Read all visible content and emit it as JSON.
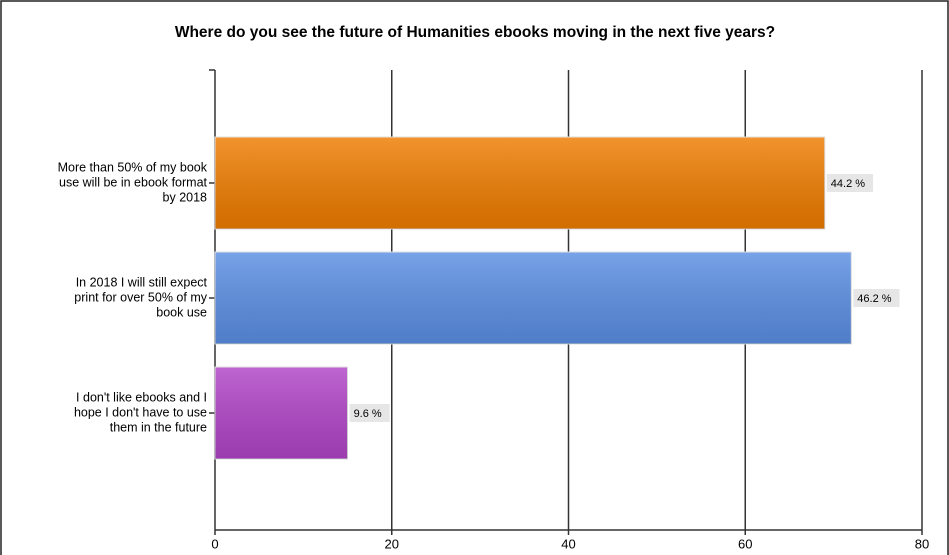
{
  "chart_data": {
    "type": "bar",
    "orientation": "horizontal",
    "title": "Where do you see the future of Humanities ebooks moving in the next five years?",
    "categories": [
      "More than 50% of my book use will be in ebook format by 2018",
      "In 2018 I will still expect print for over 50% of my book use",
      "I don't like ebooks and I hope I don't have to use them in the future"
    ],
    "values": [
      69,
      72,
      15
    ],
    "value_labels": [
      "44.2 %",
      "46.2 %",
      "9.6 %"
    ],
    "colors": [
      "#ef7d00",
      "#5b8fe4",
      "#b144c8"
    ],
    "xlim": [
      0,
      80
    ],
    "xticks": [
      0,
      20,
      40,
      60,
      80
    ],
    "grid": true
  }
}
